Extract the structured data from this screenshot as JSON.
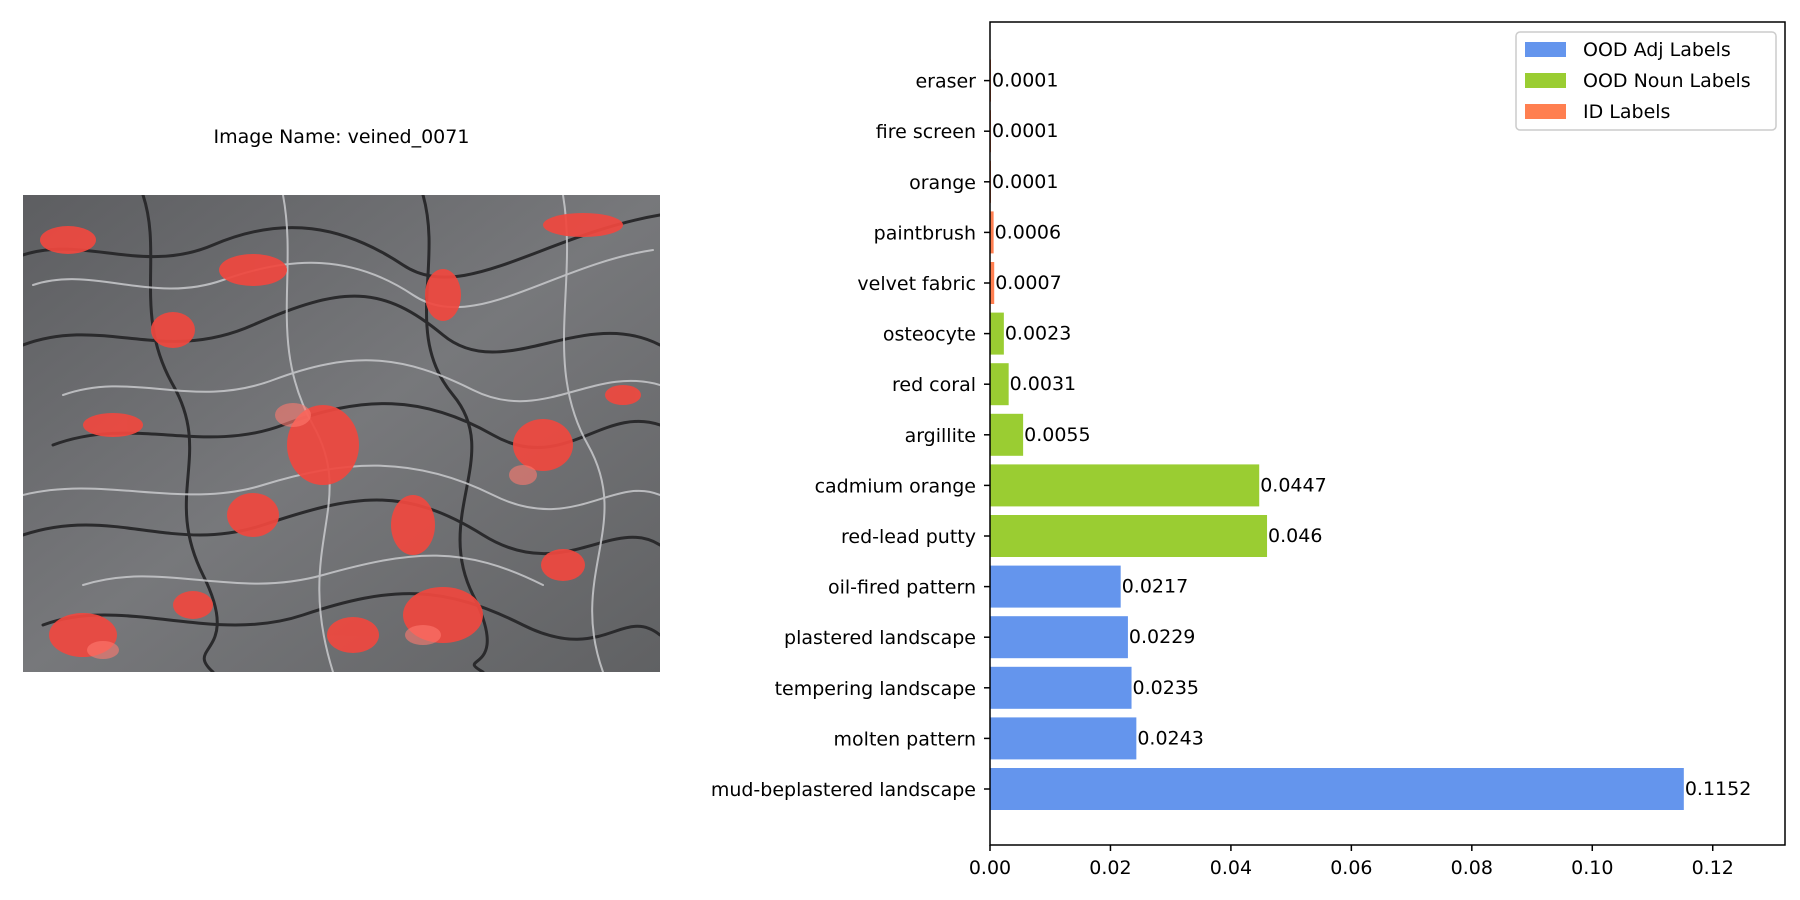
{
  "image_panel": {
    "title": "Image Name: veined_0071"
  },
  "colors": {
    "ood_adj": "#6495ED",
    "ood_noun": "#9ACD32",
    "id": "#FF7F50"
  },
  "chart_data": {
    "type": "bar",
    "orientation": "horizontal",
    "title": "",
    "xlabel": "",
    "ylabel": "",
    "xlim": [
      0,
      0.132
    ],
    "xticks": [
      0.0,
      0.02,
      0.04,
      0.06,
      0.08,
      0.1,
      0.12
    ],
    "xtick_labels": [
      "0.00",
      "0.02",
      "0.04",
      "0.06",
      "0.08",
      "0.10",
      "0.12"
    ],
    "grid": false,
    "legend_position": "top-right",
    "series": [
      {
        "name": "OOD Adj Labels",
        "color_key": "ood_adj"
      },
      {
        "name": "OOD Noun Labels",
        "color_key": "ood_noun"
      },
      {
        "name": "ID Labels",
        "color_key": "id"
      }
    ],
    "bars": [
      {
        "label": "mud-beplastered landscape",
        "value": 0.1152,
        "value_text": "0.1152",
        "group": "ood_adj"
      },
      {
        "label": "molten pattern",
        "value": 0.0243,
        "value_text": "0.0243",
        "group": "ood_adj"
      },
      {
        "label": "tempering landscape",
        "value": 0.0235,
        "value_text": "0.0235",
        "group": "ood_adj"
      },
      {
        "label": "plastered landscape",
        "value": 0.0229,
        "value_text": "0.0229",
        "group": "ood_adj"
      },
      {
        "label": "oil-fired pattern",
        "value": 0.0217,
        "value_text": "0.0217",
        "group": "ood_adj"
      },
      {
        "label": "red-lead putty",
        "value": 0.046,
        "value_text": "0.046",
        "group": "ood_noun"
      },
      {
        "label": "cadmium orange",
        "value": 0.0447,
        "value_text": "0.0447",
        "group": "ood_noun"
      },
      {
        "label": "argillite",
        "value": 0.0055,
        "value_text": "0.0055",
        "group": "ood_noun"
      },
      {
        "label": "red coral",
        "value": 0.0031,
        "value_text": "0.0031",
        "group": "ood_noun"
      },
      {
        "label": "osteocyte",
        "value": 0.0023,
        "value_text": "0.0023",
        "group": "ood_noun"
      },
      {
        "label": "velvet fabric",
        "value": 0.0007,
        "value_text": "0.0007",
        "group": "id"
      },
      {
        "label": "paintbrush",
        "value": 0.0006,
        "value_text": "0.0006",
        "group": "id"
      },
      {
        "label": "orange",
        "value": 0.0001,
        "value_text": "0.0001",
        "group": "id"
      },
      {
        "label": "fire screen",
        "value": 0.0001,
        "value_text": "0.0001",
        "group": "id"
      },
      {
        "label": "eraser",
        "value": 0.0001,
        "value_text": "0.0001",
        "group": "id"
      }
    ]
  }
}
